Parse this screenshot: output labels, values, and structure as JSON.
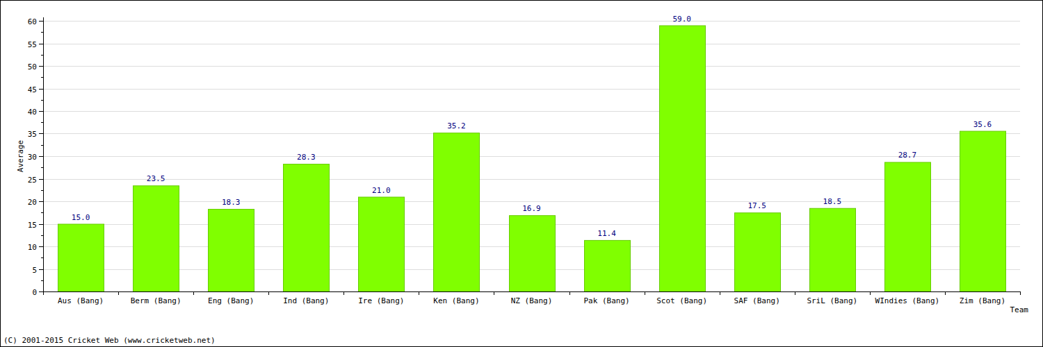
{
  "chart_data": {
    "type": "bar",
    "x_label": "Team",
    "y_label": "Average",
    "annotations": [
      "(C) 2001-2015 Cricket Web (www.cricketweb.net)"
    ],
    "categories": [
      "Aus (Bang)",
      "Berm (Bang)",
      "Eng (Bang)",
      "Ind (Bang)",
      "Ire (Bang)",
      "Ken (Bang)",
      "NZ (Bang)",
      "Pak (Bang)",
      "Scot (Bang)",
      "SAF (Bang)",
      "SriL (Bang)",
      "WIndies (Bang)",
      "Zim (Bang)"
    ],
    "values": [
      15.0,
      23.5,
      18.3,
      28.3,
      21.0,
      35.2,
      16.9,
      11.4,
      59.0,
      17.5,
      18.5,
      28.7,
      35.6
    ],
    "value_labels": [
      "15.0",
      "23.5",
      "18.3",
      "28.3",
      "21.0",
      "35.2",
      "16.9",
      "11.4",
      "59.0",
      "17.5",
      "18.5",
      "28.7",
      "35.6"
    ],
    "color": "#80ff00",
    "ylim": [
      0,
      60
    ],
    "yticks": [
      0,
      5,
      10,
      15,
      20,
      25,
      30,
      35,
      40,
      45,
      50,
      55,
      60
    ],
    "grid": true,
    "data_labels": true
  }
}
